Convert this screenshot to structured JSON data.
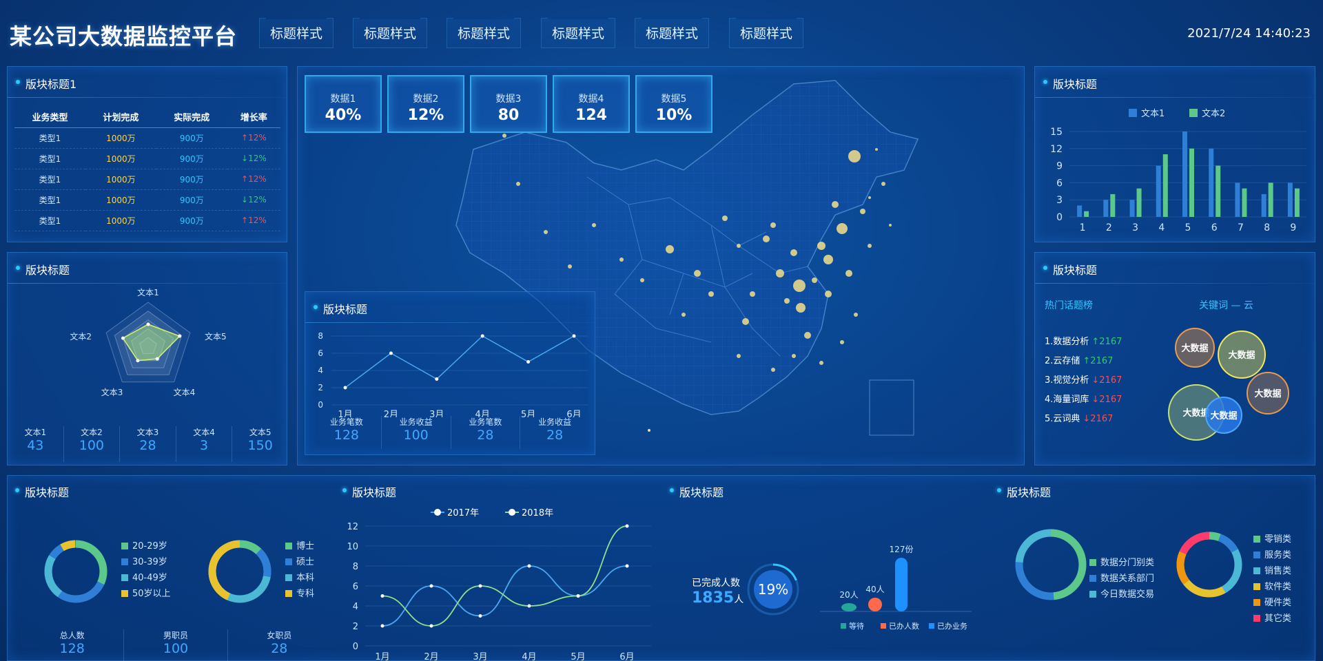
{
  "header": {
    "title": "某公司大数据监控平台",
    "tabs": [
      "标题样式",
      "标题样式",
      "标题样式",
      "标题样式",
      "标题样式",
      "标题样式"
    ],
    "datetime": "2021/7/24 14:40:23"
  },
  "panel1": {
    "title": "版块标题1",
    "columns": [
      "业务类型",
      "计划完成",
      "实际完成",
      "增长率"
    ],
    "rows": [
      {
        "type": "类型1",
        "plan": "1000万",
        "actual": "900万",
        "rate": "↑12%",
        "dir": "up"
      },
      {
        "type": "类型1",
        "plan": "1000万",
        "actual": "900万",
        "rate": "↓12%",
        "dir": "down"
      },
      {
        "type": "类型1",
        "plan": "1000万",
        "actual": "900万",
        "rate": "↑12%",
        "dir": "up"
      },
      {
        "type": "类型1",
        "plan": "1000万",
        "actual": "900万",
        "rate": "↓12%",
        "dir": "down"
      },
      {
        "type": "类型1",
        "plan": "1000万",
        "actual": "900万",
        "rate": "↑12%",
        "dir": "up"
      }
    ]
  },
  "radar": {
    "title": "版块标题",
    "axes": [
      "文本1",
      "文本5",
      "文本4",
      "文本3",
      "文本2"
    ],
    "values": [
      0.5,
      0.75,
      0.35,
      0.4,
      0.6
    ],
    "stats": [
      {
        "label": "文本1",
        "value": "43"
      },
      {
        "label": "文本2",
        "value": "100"
      },
      {
        "label": "文本3",
        "value": "28"
      },
      {
        "label": "文本4",
        "value": "3"
      },
      {
        "label": "文本5",
        "value": "150"
      }
    ]
  },
  "stats_top": [
    {
      "label": "数据1",
      "value": "40%"
    },
    {
      "label": "数据2",
      "value": "12%"
    },
    {
      "label": "数据3",
      "value": "80"
    },
    {
      "label": "数据4",
      "value": "124"
    },
    {
      "label": "数据5",
      "value": "10%"
    }
  ],
  "line_panel": {
    "title": "版块标题",
    "chart_data": {
      "type": "line",
      "categories": [
        "1月",
        "2月",
        "3月",
        "4月",
        "5月",
        "6月"
      ],
      "values": [
        2,
        6,
        3,
        8,
        5,
        8
      ],
      "yticks": [
        0,
        2,
        4,
        6,
        8
      ]
    },
    "stats": [
      {
        "label": "业务笔数",
        "value": "128"
      },
      {
        "label": "业务收益",
        "value": "100"
      },
      {
        "label": "业务笔数",
        "value": "28"
      },
      {
        "label": "业务收益",
        "value": "28"
      }
    ]
  },
  "bar_panel": {
    "title": "版块标题",
    "chart_data": {
      "type": "bar",
      "categories": [
        "1",
        "2",
        "3",
        "4",
        "5",
        "6",
        "7",
        "8",
        "9"
      ],
      "series": [
        {
          "name": "文本1",
          "color": "#2f7fd6",
          "values": [
            2,
            3,
            3,
            9,
            15,
            12,
            6,
            4,
            6
          ]
        },
        {
          "name": "文本2",
          "color": "#5cc98a",
          "values": [
            1,
            4,
            5,
            11,
            12,
            9,
            5,
            6,
            5
          ]
        }
      ],
      "yticks": [
        0,
        3,
        6,
        9,
        12,
        15
      ]
    }
  },
  "hot_panel": {
    "title": "版块标题",
    "hot_title": "热门话题榜",
    "cloud_title": "关键词 — 云",
    "items": [
      {
        "text": "1.数据分析",
        "count": "↑2167",
        "dir": "up"
      },
      {
        "text": "2.云存储",
        "count": "↑2167",
        "dir": "up"
      },
      {
        "text": "3.视觉分析",
        "count": "↓2167",
        "dir": "down"
      },
      {
        "text": "4.海量词库",
        "count": "↓2167",
        "dir": "down"
      },
      {
        "text": "5.云词典",
        "count": "↓2167",
        "dir": "down"
      }
    ],
    "bubbles": [
      "大数据",
      "大数据",
      "大数据",
      "大数据",
      "大数据"
    ]
  },
  "donut_panel": {
    "title": "版块标题",
    "legend1": [
      "20-29岁",
      "30-39岁",
      "40-49岁",
      "50岁以上"
    ],
    "legend2": [
      "博士",
      "硕士",
      "本科",
      "专科"
    ],
    "stats": [
      {
        "label": "总人数",
        "value": "128"
      },
      {
        "label": "男职员",
        "value": "100"
      },
      {
        "label": "女职员",
        "value": "28"
      }
    ]
  },
  "smooth_panel": {
    "title": "版块标题",
    "chart_data": {
      "type": "line",
      "categories": [
        "1月",
        "2月",
        "3月",
        "4月",
        "5月",
        "6月"
      ],
      "series": [
        {
          "name": "2017年",
          "color": "#4aa8f0",
          "values": [
            2,
            6,
            3,
            8,
            5,
            8
          ]
        },
        {
          "name": "2018年",
          "color": "#8ee08a",
          "values": [
            5,
            2,
            6,
            4,
            5,
            12
          ]
        }
      ],
      "yticks": [
        0,
        2,
        4,
        6,
        8,
        10,
        12
      ]
    }
  },
  "progress_panel": {
    "title": "版块标题",
    "done_label": "已完成人数",
    "done_value": "1835",
    "done_unit": "人",
    "percent": "19%",
    "percent_fraction": 0.19,
    "bars": [
      {
        "value": "20人",
        "color": "#26a69a"
      },
      {
        "value": "40人",
        "color": "#ff6a4d"
      },
      {
        "value": "127份",
        "color": "#1e90ff"
      }
    ],
    "legend": [
      "等待",
      "已办人数",
      "已办业务"
    ]
  },
  "category_panel": {
    "title": "版块标题",
    "legend1": [
      "数据分门别类",
      "数据关系部门",
      "今日数据交易"
    ],
    "legend2": [
      "零销类",
      "服务类",
      "销售类",
      "软件类",
      "硬件类",
      "其它类"
    ]
  }
}
